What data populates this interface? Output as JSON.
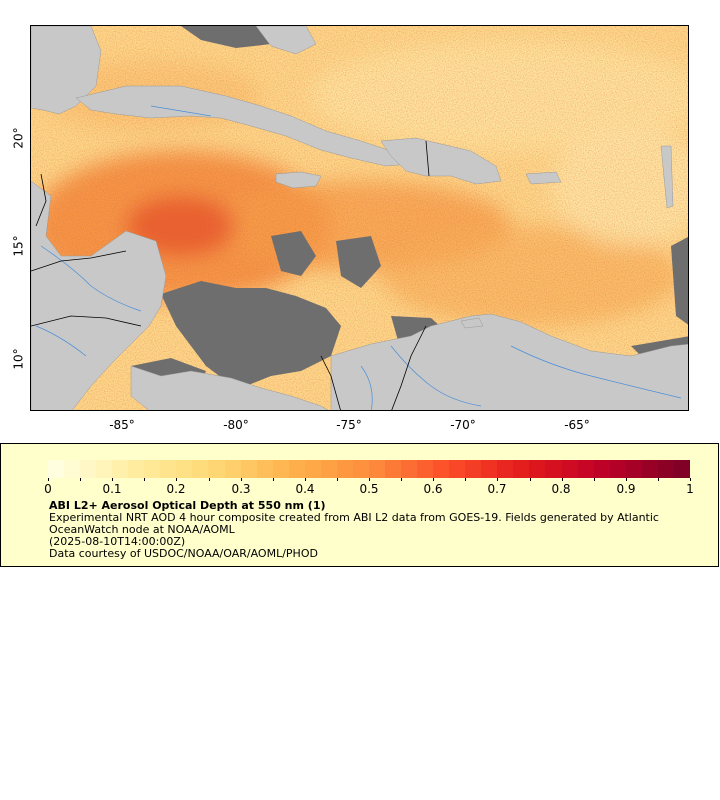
{
  "map": {
    "y_ticks": [
      {
        "label": "20°",
        "value": 20
      },
      {
        "label": "15°",
        "value": 15
      },
      {
        "label": "10°",
        "value": 10
      }
    ],
    "x_ticks": [
      {
        "label": "-85°",
        "value": -85
      },
      {
        "label": "-80°",
        "value": -80
      },
      {
        "label": "-75°",
        "value": -75
      },
      {
        "label": "-70°",
        "value": -70
      },
      {
        "label": "-65°",
        "value": -65
      }
    ],
    "colors": {
      "land": "#c8c8c8",
      "no_data": "#6e6e6e",
      "borders": "#000000",
      "rivers": "#4a8ed8"
    }
  },
  "legend": {
    "scale_labels": [
      "0",
      "0.1",
      "0.2",
      "0.3",
      "0.4",
      "0.5",
      "0.6",
      "0.7",
      "0.8",
      "0.9",
      "1"
    ],
    "scale_range": [
      0,
      1
    ],
    "colors": [
      "#ffffe0",
      "#ffeda0",
      "#fed976",
      "#feb24c",
      "#fd8d3c",
      "#fc4e2a",
      "#e31a1c",
      "#bd0026",
      "#800026"
    ],
    "title": "ABI L2+ Aerosol Optical Depth at 550 nm (1)",
    "description": "Experimental NRT AOD 4 hour composite created from ABI L2 data from GOES-19. Fields generated by Atlantic OceanWatch node at NOAA/AOML",
    "timestamp": "(2025-08-10T14:00:00Z)",
    "credit": "Data courtesy of USDOC/NOAA/OAR/AOML/PHOD"
  }
}
